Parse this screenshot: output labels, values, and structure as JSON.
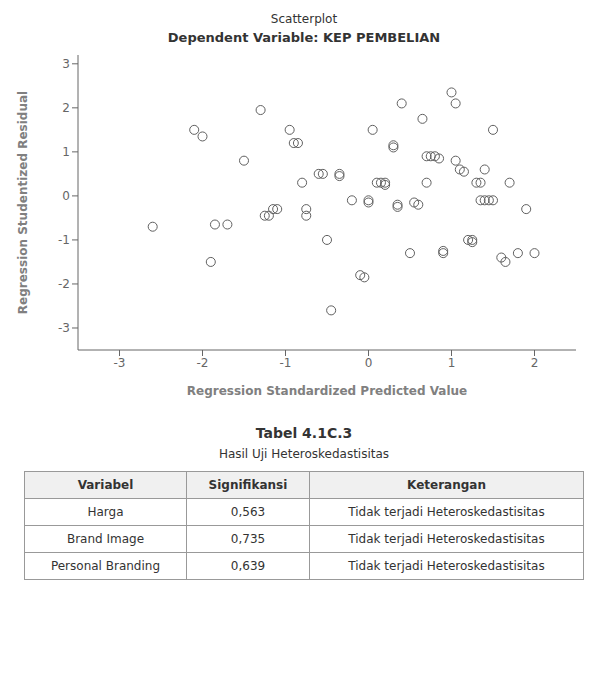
{
  "chart_data": {
    "type": "scatter",
    "title": "Scatterplot",
    "subtitle": "Dependent Variable: KEP PEMBELIAN",
    "x_label": "Regression Standardized Predicted Value",
    "y_label": "Regression Studentized Residual",
    "points": [
      [
        -2.6,
        -0.7
      ],
      [
        -2.1,
        1.5
      ],
      [
        -2.0,
        1.35
      ],
      [
        -1.9,
        -1.5
      ],
      [
        -1.85,
        -0.65
      ],
      [
        -1.7,
        -0.65
      ],
      [
        -1.5,
        0.8
      ],
      [
        -1.3,
        1.95
      ],
      [
        -1.25,
        -0.45
      ],
      [
        -1.2,
        -0.45
      ],
      [
        -1.15,
        -0.3
      ],
      [
        -1.1,
        -0.3
      ],
      [
        -0.95,
        1.5
      ],
      [
        -0.9,
        1.2
      ],
      [
        -0.85,
        1.2
      ],
      [
        -0.8,
        0.3
      ],
      [
        -0.75,
        -0.45
      ],
      [
        -0.75,
        -0.3
      ],
      [
        -0.6,
        0.5
      ],
      [
        -0.55,
        0.5
      ],
      [
        -0.5,
        -1.0
      ],
      [
        -0.45,
        -2.6
      ],
      [
        -0.35,
        0.5
      ],
      [
        -0.35,
        0.45
      ],
      [
        -0.2,
        -0.1
      ],
      [
        -0.1,
        -1.8
      ],
      [
        -0.05,
        -1.85
      ],
      [
        0.0,
        -0.1
      ],
      [
        0.0,
        -0.15
      ],
      [
        0.05,
        1.5
      ],
      [
        0.1,
        0.3
      ],
      [
        0.15,
        0.3
      ],
      [
        0.2,
        0.3
      ],
      [
        0.2,
        0.25
      ],
      [
        0.3,
        1.1
      ],
      [
        0.3,
        1.15
      ],
      [
        0.35,
        -0.2
      ],
      [
        0.35,
        -0.25
      ],
      [
        0.4,
        2.1
      ],
      [
        0.5,
        -1.3
      ],
      [
        0.55,
        -0.15
      ],
      [
        0.6,
        -0.2
      ],
      [
        0.65,
        1.75
      ],
      [
        0.7,
        0.3
      ],
      [
        0.7,
        0.9
      ],
      [
        0.75,
        0.9
      ],
      [
        0.8,
        0.9
      ],
      [
        0.85,
        0.85
      ],
      [
        0.9,
        -1.25
      ],
      [
        0.9,
        -1.3
      ],
      [
        1.0,
        2.35
      ],
      [
        1.05,
        0.8
      ],
      [
        1.05,
        2.1
      ],
      [
        1.1,
        0.6
      ],
      [
        1.15,
        0.55
      ],
      [
        1.2,
        -1.0
      ],
      [
        1.25,
        -1.0
      ],
      [
        1.25,
        -1.05
      ],
      [
        1.3,
        0.3
      ],
      [
        1.35,
        0.3
      ],
      [
        1.35,
        -0.1
      ],
      [
        1.4,
        -0.1
      ],
      [
        1.4,
        0.6
      ],
      [
        1.45,
        -0.1
      ],
      [
        1.5,
        -0.1
      ],
      [
        1.5,
        1.5
      ],
      [
        1.6,
        -1.4
      ],
      [
        1.65,
        -1.5
      ],
      [
        1.7,
        0.3
      ],
      [
        1.8,
        -1.3
      ],
      [
        1.9,
        -0.3
      ],
      [
        2.0,
        -1.3
      ]
    ],
    "color": "#606060",
    "marker": "circle",
    "xlim": [
      -3.5,
      2.5
    ],
    "ylim": [
      -3.5,
      3.2
    ],
    "xticks": [
      -3,
      -2,
      -1,
      0,
      1,
      2
    ],
    "yticks": [
      -3,
      -2,
      -1,
      0,
      1,
      2,
      3
    ],
    "grid": false,
    "table": {
      "title": "Tabel  4.1C.3",
      "subtitle": "Hasil Uji Heteroskedastisitas",
      "columns": [
        "Variabel",
        "Signifikansi",
        "Keterangan"
      ],
      "rows": [
        [
          "Harga",
          "0,563",
          "Tidak terjadi Heteroskedastisitas"
        ],
        [
          "Brand Image",
          "0,735",
          "Tidak terjadi Heteroskedastisitas"
        ],
        [
          "Personal Branding",
          "0,639",
          "Tidak terjadi Heteroskedastisitas"
        ]
      ]
    }
  }
}
